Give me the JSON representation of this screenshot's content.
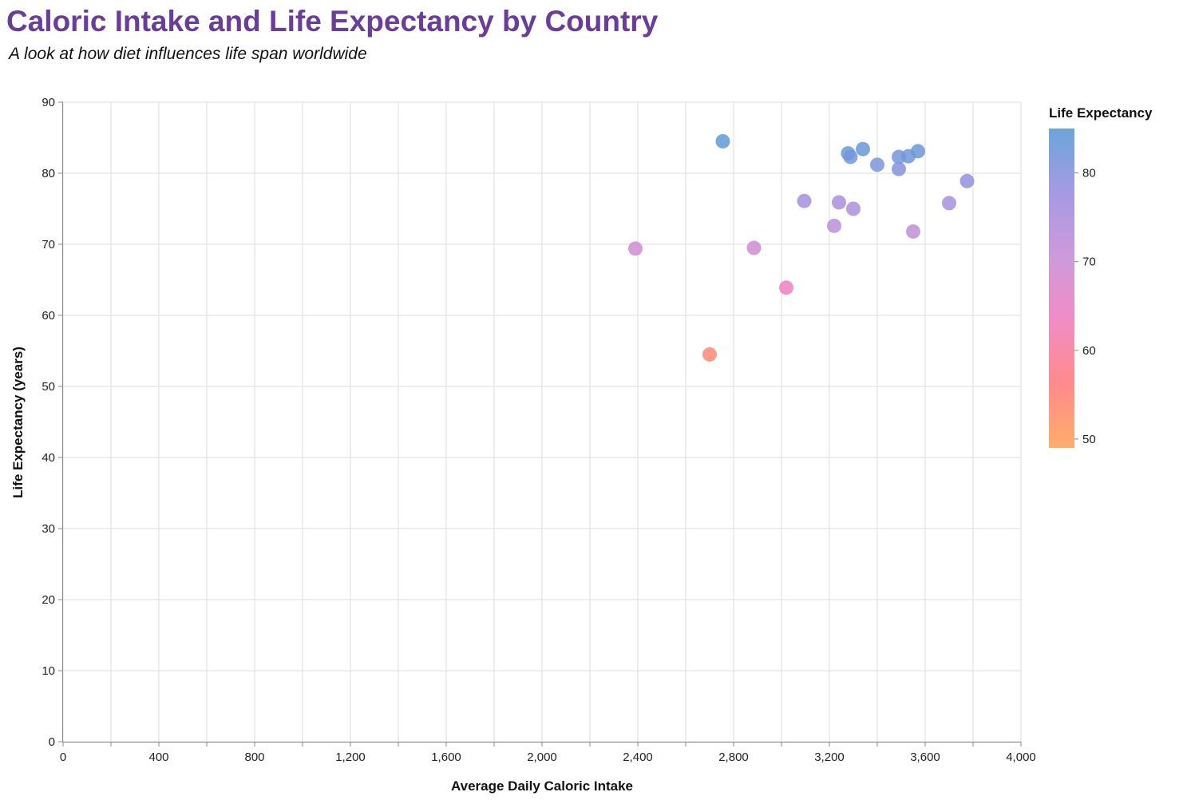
{
  "chart_data": {
    "type": "scatter",
    "title": "Caloric Intake and Life Expectancy by Country",
    "subtitle": "A look at how diet influences life span worldwide",
    "xlabel": "Average Daily Caloric Intake",
    "ylabel": "Life Expectancy (years)",
    "xlim": [
      0,
      4000
    ],
    "ylim": [
      0,
      90
    ],
    "x_ticks": [
      0,
      400,
      800,
      1200,
      1600,
      2000,
      2400,
      2800,
      3200,
      3600,
      4000
    ],
    "x_tick_labels": [
      "0",
      "400",
      "800",
      "1,200",
      "1,600",
      "2,000",
      "2,400",
      "2,800",
      "3,200",
      "3,600",
      "4,000"
    ],
    "x_minor_ticks": [
      200,
      600,
      1000,
      1400,
      1800,
      2200,
      2600,
      3000,
      3400,
      3800
    ],
    "y_ticks": [
      0,
      10,
      20,
      30,
      40,
      50,
      60,
      70,
      80,
      90
    ],
    "y_tick_labels": [
      "0",
      "10",
      "20",
      "30",
      "40",
      "50",
      "60",
      "70",
      "80",
      "90"
    ],
    "grid": true,
    "legend": {
      "title": "Life Expectancy",
      "placement": "right",
      "domain": [
        49,
        85
      ],
      "labels": [
        "80",
        "70",
        "60",
        "50"
      ],
      "label_values": [
        80,
        70,
        60,
        50
      ],
      "colors": [
        "#5b9bd5",
        "#9b8fe0",
        "#c78fd6",
        "#f07fbf",
        "#ff7e7e",
        "#ffa35a"
      ]
    },
    "points": [
      {
        "x": 2755,
        "y": 84.5
      },
      {
        "x": 3278,
        "y": 82.8
      },
      {
        "x": 3288,
        "y": 82.3
      },
      {
        "x": 3340,
        "y": 83.4
      },
      {
        "x": 3400,
        "y": 81.2
      },
      {
        "x": 3490,
        "y": 82.3
      },
      {
        "x": 3490,
        "y": 80.6
      },
      {
        "x": 3530,
        "y": 82.4
      },
      {
        "x": 3570,
        "y": 83.1
      },
      {
        "x": 3775,
        "y": 78.9
      },
      {
        "x": 3095,
        "y": 76.1
      },
      {
        "x": 3240,
        "y": 75.9
      },
      {
        "x": 3300,
        "y": 75.0
      },
      {
        "x": 3220,
        "y": 72.6
      },
      {
        "x": 3700,
        "y": 75.8
      },
      {
        "x": 3550,
        "y": 71.8
      },
      {
        "x": 2390,
        "y": 69.4
      },
      {
        "x": 2885,
        "y": 69.5
      },
      {
        "x": 3020,
        "y": 63.9
      },
      {
        "x": 2700,
        "y": 54.5
      }
    ]
  }
}
